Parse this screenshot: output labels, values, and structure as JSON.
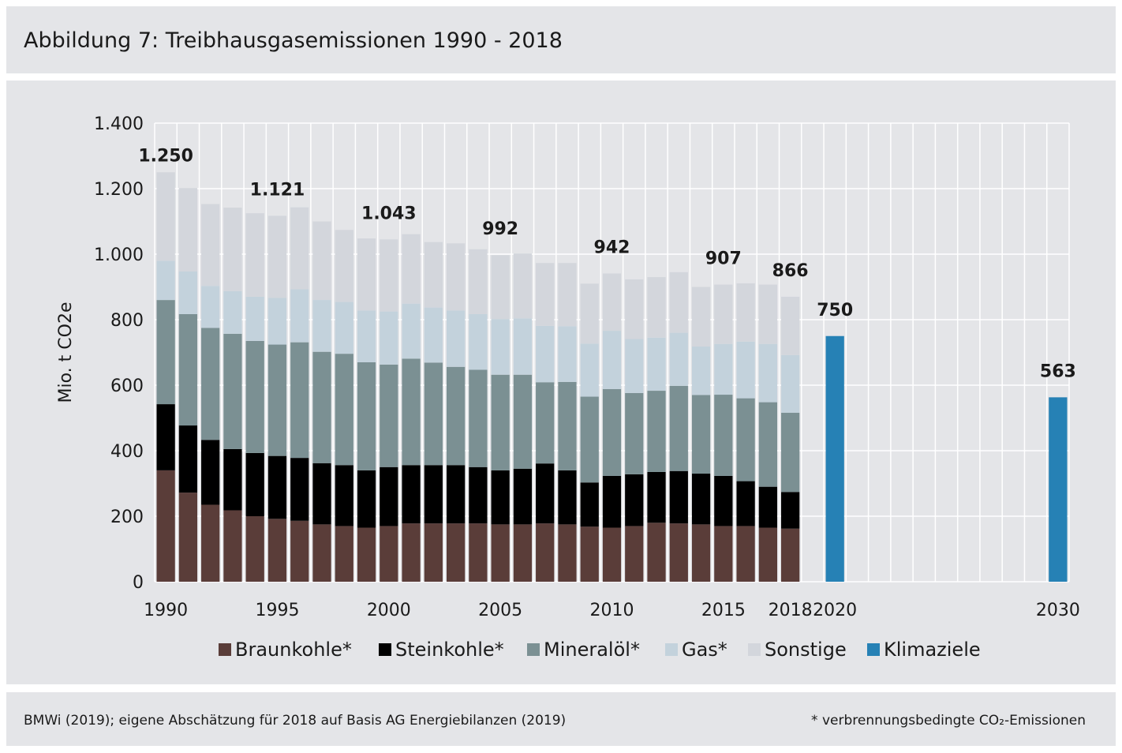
{
  "header": {
    "title": "Abbildung 7: Treibhausgasemissionen 1990 - 2018"
  },
  "footer": {
    "source": "BMWi (2019); eigene Abschätzung für 2018 auf Basis AG Energiebilanzen (2019)",
    "note": "* verbrennungsbedingte CO₂-Emissionen"
  },
  "chart_data": {
    "type": "bar",
    "stacked": true,
    "ylabel": "Mio. t CO2e",
    "ylim": [
      0,
      1400
    ],
    "yticks": [
      0,
      200,
      400,
      600,
      800,
      1000,
      1200,
      1400
    ],
    "yticks_labels": [
      "0",
      "200",
      "400",
      "600",
      "800",
      "1.000",
      "1.200",
      "1.400"
    ],
    "xlim": [
      1990,
      2030
    ],
    "xticks": [
      1990,
      1995,
      2000,
      2005,
      2010,
      2015,
      2018,
      2020,
      2030
    ],
    "xticks_labels": [
      "1990",
      "1995",
      "2000",
      "2005",
      "2010",
      "2015",
      "2018",
      "2020",
      "2030"
    ],
    "grid": true,
    "legend_position": "bottom",
    "colors": {
      "Braunkohle*": "#5a3d39",
      "Steinkohle*": "#000000",
      "Mineralöl*": "#7b9093",
      "Gas*": "#c3d2dc",
      "Sonstige": "#d3d6dc",
      "Klimaziele": "#2681b5"
    },
    "x": [
      1990,
      1991,
      1992,
      1993,
      1994,
      1995,
      1996,
      1997,
      1998,
      1999,
      2000,
      2001,
      2002,
      2003,
      2004,
      2005,
      2006,
      2007,
      2008,
      2009,
      2010,
      2011,
      2012,
      2013,
      2014,
      2015,
      2016,
      2017,
      2018
    ],
    "series": [
      {
        "name": "Braunkohle*",
        "values": [
          340,
          272,
          235,
          218,
          200,
          192,
          186,
          175,
          170,
          165,
          170,
          178,
          178,
          178,
          178,
          175,
          175,
          178,
          175,
          168,
          165,
          170,
          180,
          178,
          175,
          170,
          170,
          165,
          162
        ]
      },
      {
        "name": "Steinkohle*",
        "values": [
          202,
          205,
          198,
          187,
          193,
          192,
          192,
          187,
          186,
          175,
          180,
          178,
          178,
          178,
          172,
          165,
          170,
          183,
          165,
          135,
          158,
          158,
          155,
          160,
          155,
          153,
          137,
          125,
          112
        ]
      },
      {
        "name": "Mineralöl*",
        "values": [
          318,
          340,
          342,
          352,
          342,
          340,
          353,
          340,
          340,
          330,
          313,
          325,
          313,
          300,
          297,
          292,
          287,
          248,
          270,
          262,
          265,
          248,
          248,
          260,
          240,
          248,
          253,
          258,
          242
        ]
      },
      {
        "name": "Gas*",
        "values": [
          120,
          130,
          128,
          130,
          135,
          143,
          162,
          158,
          158,
          158,
          162,
          168,
          168,
          172,
          170,
          170,
          172,
          172,
          170,
          162,
          178,
          165,
          162,
          162,
          148,
          155,
          173,
          178,
          176
        ]
      },
      {
        "name": "Sonstige",
        "values": [
          270,
          255,
          250,
          255,
          255,
          250,
          250,
          240,
          220,
          220,
          220,
          212,
          200,
          205,
          198,
          195,
          198,
          192,
          193,
          183,
          175,
          182,
          185,
          185,
          182,
          181,
          178,
          181,
          178
        ]
      }
    ],
    "targets": [
      {
        "name": "Klimaziele",
        "x": 2020,
        "value": 750
      },
      {
        "name": "Klimaziele",
        "x": 2030,
        "value": 563
      }
    ],
    "annotations": [
      {
        "x": 1990,
        "text": "1.250"
      },
      {
        "x": 1995,
        "text": "1.121"
      },
      {
        "x": 2000,
        "text": "1.043"
      },
      {
        "x": 2005,
        "text": "992"
      },
      {
        "x": 2010,
        "text": "942"
      },
      {
        "x": 2015,
        "text": "907"
      },
      {
        "x": 2018,
        "text": "866"
      },
      {
        "x": 2020,
        "text": "750"
      },
      {
        "x": 2030,
        "text": "563"
      }
    ]
  }
}
